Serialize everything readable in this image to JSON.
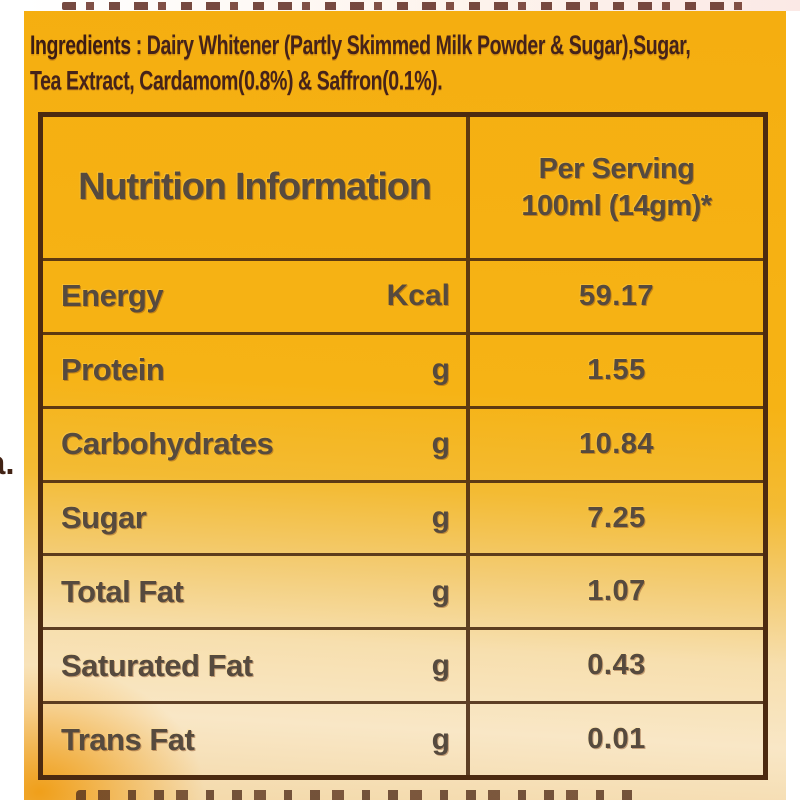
{
  "colors": {
    "label_yellow": "#f6b315",
    "label_glare_cream": "#f8e4bd",
    "table_border_brown": "#4c2a10",
    "printed_text_gray": "#564a3e",
    "ingredients_text_brown": "#45231a",
    "background_white": "#ffffff"
  },
  "ingredients": {
    "label": "Ingredients",
    "line1": " : Dairy Whitener (Partly Skimmed Milk Powder & Sugar),Sugar,",
    "line2": "Tea Extract, Cardamom(0.8%) & Saffron(0.1%)."
  },
  "nutrition_table": {
    "header": {
      "title": "Nutrition Information",
      "serving_line1": "Per Serving",
      "serving_line2": "100ml (14gm)*"
    },
    "rows": [
      {
        "label": "Energy",
        "unit": "Kcal",
        "value": "59.17"
      },
      {
        "label": "Protein",
        "unit": "g",
        "value": "1.55"
      },
      {
        "label": "Carbohydrates",
        "unit": "g",
        "value": "10.84"
      },
      {
        "label": "Sugar",
        "unit": "g",
        "value": "7.25"
      },
      {
        "label": "Total Fat",
        "unit": "g",
        "value": "1.07"
      },
      {
        "label": "Saturated Fat",
        "unit": "g",
        "value": "0.43"
      },
      {
        "label": "Trans Fat",
        "unit": "g",
        "value": "0.01"
      }
    ]
  },
  "edge_fragment": "a."
}
